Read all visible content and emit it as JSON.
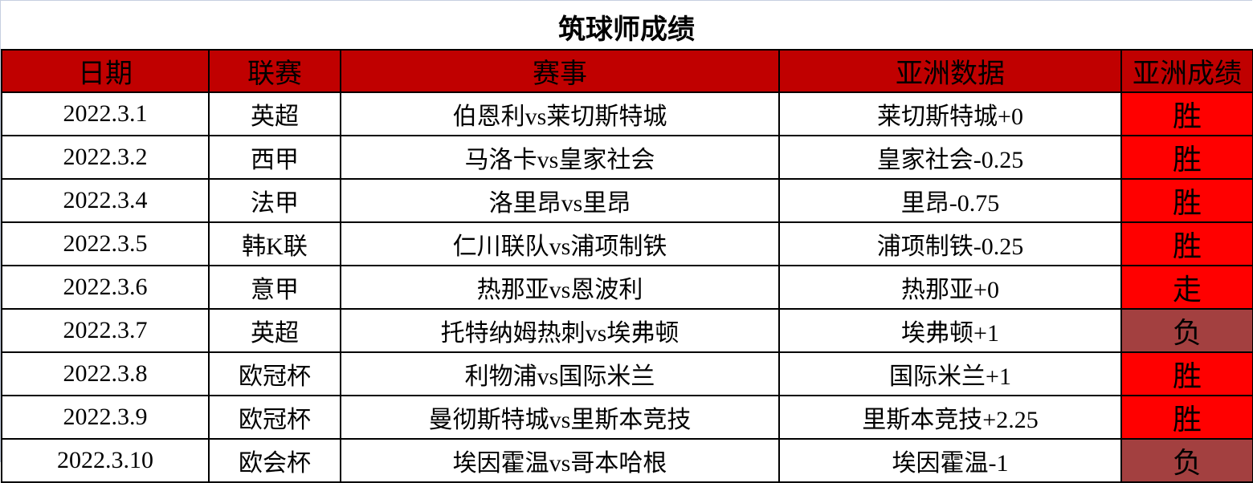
{
  "title": "筑球师成绩",
  "headers": [
    "日期",
    "联赛",
    "赛事",
    "亚洲数据",
    "亚洲成绩"
  ],
  "colors": {
    "header": "#c00000",
    "win": "#ff0000",
    "draw": "#ff0000",
    "loss": "#a34040"
  },
  "rows": [
    {
      "date": "2022.3.1",
      "league": "英超",
      "match": "伯恩利vs莱切斯特城",
      "asia": "莱切斯特城+0",
      "result": "胜",
      "status": "win"
    },
    {
      "date": "2022.3.2",
      "league": "西甲",
      "match": "马洛卡vs皇家社会",
      "asia": "皇家社会-0.25",
      "result": "胜",
      "status": "win"
    },
    {
      "date": "2022.3.4",
      "league": "法甲",
      "match": "洛里昂vs里昂",
      "asia": "里昂-0.75",
      "result": "胜",
      "status": "win"
    },
    {
      "date": "2022.3.5",
      "league": "韩K联",
      "match": "仁川联队vs浦项制铁",
      "asia": "浦项制铁-0.25",
      "result": "胜",
      "status": "win"
    },
    {
      "date": "2022.3.6",
      "league": "意甲",
      "match": "热那亚vs恩波利",
      "asia": "热那亚+0",
      "result": "走",
      "status": "draw"
    },
    {
      "date": "2022.3.7",
      "league": "英超",
      "match": "托特纳姆热刺vs埃弗顿",
      "asia": "埃弗顿+1",
      "result": "负",
      "status": "loss"
    },
    {
      "date": "2022.3.8",
      "league": "欧冠杯",
      "match": "利物浦vs国际米兰",
      "asia": "国际米兰+1",
      "result": "胜",
      "status": "win"
    },
    {
      "date": "2022.3.9",
      "league": "欧冠杯",
      "match": "曼彻斯特城vs里斯本竞技",
      "asia": "里斯本竞技+2.25",
      "result": "胜",
      "status": "win"
    },
    {
      "date": "2022.3.10",
      "league": "欧会杯",
      "match": "埃因霍温vs哥本哈根",
      "asia": "埃因霍温-1",
      "result": "负",
      "status": "loss"
    }
  ]
}
